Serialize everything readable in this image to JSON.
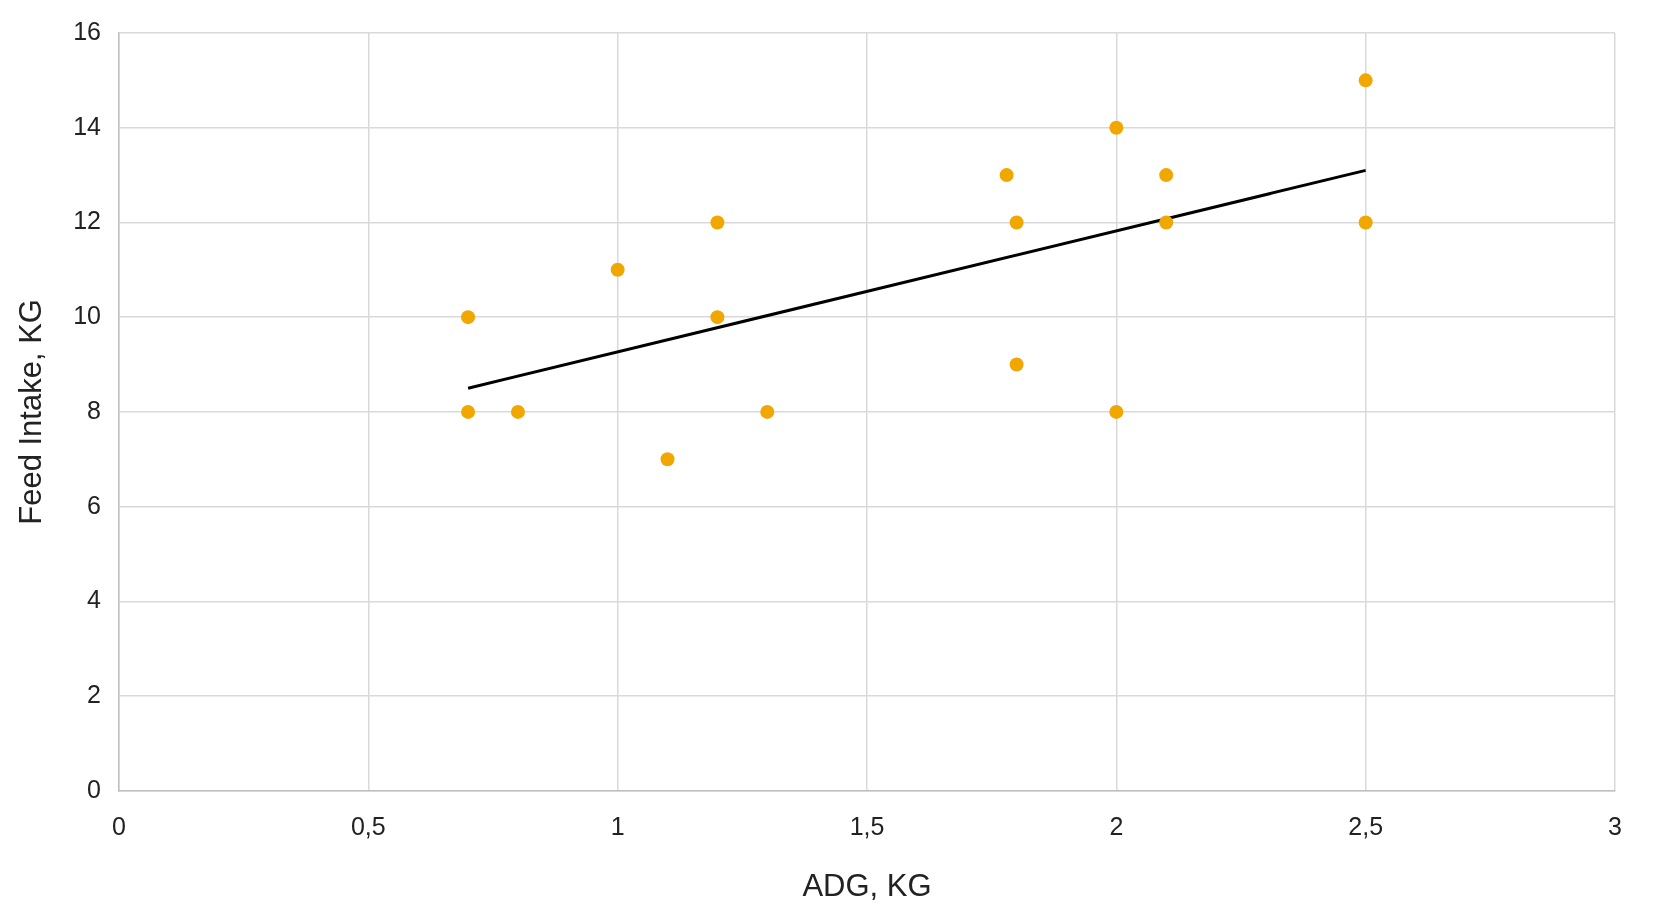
{
  "chart_data": {
    "type": "scatter",
    "xlabel": "ADG, KG",
    "ylabel": "Feed Intake, KG",
    "xlim": [
      0,
      3
    ],
    "xticks": [
      0,
      {
        "value": 0.5,
        "label": "0,5"
      },
      1,
      {
        "value": 1.5,
        "label": "1,5"
      },
      2,
      {
        "value": 2.5,
        "label": "2,5"
      },
      3
    ],
    "ylim": [
      0,
      16
    ],
    "yticks": [
      0,
      2,
      4,
      6,
      8,
      10,
      12,
      14,
      16
    ],
    "grid": true,
    "legend": false,
    "marker": "circle",
    "series": [
      {
        "type": "scatter",
        "color": "#f0a800",
        "x": [
          0.7,
          0.7,
          0.8,
          1.0,
          1.1,
          1.2,
          1.2,
          1.3,
          1.78,
          1.8,
          1.8,
          2.0,
          2.0,
          2.1,
          2.1,
          2.5,
          2.5
        ],
        "values": [
          10,
          8,
          8,
          11,
          7,
          12,
          10,
          8,
          13,
          12,
          9,
          14,
          8,
          13,
          12,
          15,
          12
        ]
      },
      {
        "type": "line",
        "color": "#000000",
        "marker": "none",
        "line_style": "solid",
        "x": [
          0.7,
          2.5
        ],
        "values": [
          8.5,
          13.1
        ]
      }
    ]
  }
}
